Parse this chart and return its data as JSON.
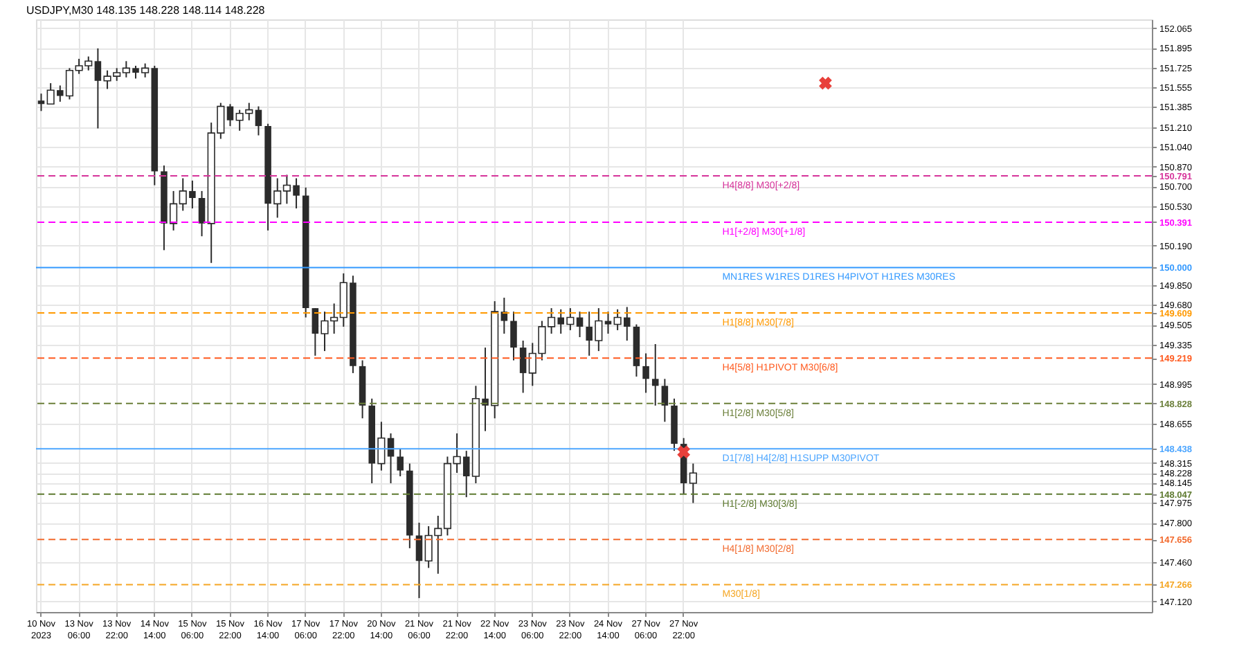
{
  "chart_data": {
    "type": "candlestick",
    "title": "USDJPY,M30  148.135 148.228 148.114 148.228",
    "categories": [
      "10 Nov 2023",
      null,
      null,
      null,
      "13 Nov 06:00",
      null,
      null,
      null,
      "13 Nov 22:00",
      null,
      null,
      null,
      "14 Nov 14:00",
      null,
      null,
      null,
      "15 Nov 06:00",
      null,
      null,
      null,
      "15 Nov 22:00",
      null,
      null,
      null,
      "16 Nov 14:00",
      null,
      null,
      null,
      "17 Nov 06:00",
      null,
      null,
      null,
      "17 Nov 22:00",
      null,
      null,
      null,
      "20 Nov 14:00",
      null,
      null,
      null,
      "21 Nov 06:00",
      null,
      null,
      null,
      "21 Nov 22:00",
      null,
      null,
      null,
      "22 Nov 14:00",
      null,
      null,
      null,
      "23 Nov 06:00",
      null,
      null,
      null,
      "23 Nov 22:00",
      null,
      null,
      null,
      "24 Nov 14:00",
      null,
      null,
      null,
      "27 Nov 06:00",
      null,
      null,
      null,
      "27 Nov 22:00",
      null,
      null,
      null,
      null,
      null,
      null,
      null,
      null,
      null,
      null,
      null,
      null,
      null,
      null,
      null,
      null,
      null,
      null,
      null,
      null,
      null,
      null,
      null,
      null,
      null,
      null,
      null,
      null,
      null,
      null,
      null,
      null,
      null,
      null,
      null,
      null,
      null,
      null,
      null,
      null,
      null,
      null,
      null,
      null,
      null,
      null,
      null,
      null,
      null
    ],
    "color": "#2b2b2b",
    "ohlc": [
      [
        151.44,
        151.5,
        151.35,
        151.41
      ],
      [
        151.41,
        151.59,
        151.41,
        151.53
      ],
      [
        151.53,
        151.57,
        151.43,
        151.48
      ],
      [
        151.48,
        151.72,
        151.45,
        151.7
      ],
      [
        151.7,
        151.8,
        151.67,
        151.74
      ],
      [
        151.74,
        151.82,
        151.7,
        151.78
      ],
      [
        151.78,
        151.89,
        151.2,
        151.61
      ],
      [
        151.61,
        151.7,
        151.54,
        151.65
      ],
      [
        151.65,
        151.72,
        151.61,
        151.68
      ],
      [
        151.68,
        151.78,
        151.64,
        151.72
      ],
      [
        151.72,
        151.74,
        151.63,
        151.68
      ],
      [
        151.68,
        151.76,
        151.64,
        151.72
      ],
      [
        151.72,
        151.74,
        150.71,
        150.83
      ],
      [
        150.83,
        150.88,
        150.15,
        150.38
      ],
      [
        150.38,
        150.66,
        150.32,
        150.55
      ],
      [
        150.55,
        150.77,
        150.49,
        150.66
      ],
      [
        150.66,
        150.75,
        150.51,
        150.6
      ],
      [
        150.6,
        150.66,
        150.27,
        150.38
      ],
      [
        150.38,
        151.25,
        150.04,
        151.16
      ],
      [
        151.16,
        151.42,
        151.11,
        151.39
      ],
      [
        151.39,
        151.41,
        151.22,
        151.27
      ],
      [
        151.27,
        151.36,
        151.18,
        151.33
      ],
      [
        151.33,
        151.42,
        151.27,
        151.36
      ],
      [
        151.36,
        151.39,
        151.14,
        151.22
      ],
      [
        151.22,
        151.24,
        150.32,
        150.55
      ],
      [
        150.55,
        150.77,
        150.43,
        150.66
      ],
      [
        150.66,
        150.8,
        150.55,
        150.71
      ],
      [
        150.71,
        150.77,
        150.51,
        150.62
      ],
      [
        150.62,
        150.69,
        149.57,
        149.65
      ],
      [
        149.65,
        149.65,
        149.24,
        149.43
      ],
      [
        149.43,
        149.62,
        149.28,
        149.54
      ],
      [
        149.54,
        149.69,
        149.43,
        149.57
      ],
      [
        149.57,
        149.95,
        149.49,
        149.87
      ],
      [
        149.87,
        149.93,
        149.09,
        149.15
      ],
      [
        149.15,
        149.2,
        148.7,
        148.81
      ],
      [
        148.81,
        148.87,
        148.14,
        148.31
      ],
      [
        148.31,
        148.67,
        148.25,
        148.53
      ],
      [
        148.53,
        148.57,
        148.14,
        148.37
      ],
      [
        148.37,
        148.44,
        148.2,
        148.25
      ],
      [
        148.25,
        148.31,
        147.58,
        147.69
      ],
      [
        147.69,
        147.8,
        147.15,
        147.47
      ],
      [
        147.47,
        147.77,
        147.41,
        147.69
      ],
      [
        147.69,
        147.86,
        147.36,
        147.75
      ],
      [
        147.75,
        148.37,
        147.69,
        148.31
      ],
      [
        148.31,
        148.57,
        148.23,
        148.37
      ],
      [
        148.37,
        148.42,
        148.02,
        148.2
      ],
      [
        148.2,
        148.98,
        148.14,
        148.87
      ],
      [
        148.87,
        149.31,
        148.59,
        148.81
      ],
      [
        148.81,
        149.71,
        148.7,
        149.62
      ],
      [
        149.62,
        149.74,
        149.43,
        149.54
      ],
      [
        149.54,
        149.62,
        149.2,
        149.31
      ],
      [
        149.31,
        149.37,
        148.92,
        149.09
      ],
      [
        149.09,
        149.35,
        148.98,
        149.26
      ],
      [
        149.26,
        149.54,
        149.2,
        149.49
      ],
      [
        149.49,
        149.65,
        149.43,
        149.57
      ],
      [
        149.57,
        149.64,
        149.43,
        149.51
      ],
      [
        149.51,
        149.65,
        149.46,
        149.57
      ],
      [
        149.57,
        149.62,
        149.4,
        149.49
      ],
      [
        149.49,
        149.62,
        149.24,
        149.37
      ],
      [
        149.37,
        149.65,
        149.28,
        149.54
      ],
      [
        149.54,
        149.62,
        149.43,
        149.51
      ],
      [
        149.51,
        149.64,
        149.46,
        149.57
      ],
      [
        149.57,
        149.66,
        149.37,
        149.49
      ],
      [
        149.49,
        149.51,
        149.06,
        149.15
      ],
      [
        149.15,
        149.26,
        148.92,
        149.04
      ],
      [
        149.04,
        149.34,
        148.81,
        148.98
      ],
      [
        148.98,
        149.04,
        148.67,
        148.81
      ],
      [
        148.81,
        148.87,
        148.42,
        148.48
      ],
      [
        148.48,
        148.53,
        148.05,
        148.14
      ],
      [
        148.14,
        148.31,
        147.97,
        148.228
      ],
      null,
      null,
      null,
      null,
      null,
      null,
      null,
      null,
      null,
      null,
      null,
      null,
      null,
      null,
      null,
      null,
      null,
      null,
      null,
      null,
      null,
      null,
      null,
      null,
      null,
      null,
      null,
      null,
      null,
      null,
      null,
      null,
      null,
      null,
      null,
      null,
      null,
      null,
      null,
      null,
      null,
      null,
      null,
      null,
      null,
      null,
      null,
      null
    ],
    "series": [
      {
        "type": "scatter",
        "marker": "cross",
        "color": "#e8403a",
        "values": [
          null,
          null,
          null,
          null,
          null,
          null,
          null,
          null,
          null,
          null,
          null,
          null,
          null,
          null,
          null,
          null,
          null,
          null,
          null,
          null,
          null,
          null,
          null,
          null,
          null,
          null,
          null,
          null,
          null,
          null,
          null,
          null,
          null,
          null,
          null,
          null,
          null,
          null,
          null,
          null,
          null,
          null,
          null,
          null,
          null,
          null,
          null,
          null,
          null,
          null,
          null,
          null,
          null,
          null,
          null,
          null,
          null,
          null,
          null,
          null,
          null,
          null,
          null,
          null,
          null,
          null,
          null,
          null,
          148.41,
          null,
          null,
          null,
          null,
          null,
          null,
          null,
          null,
          null,
          null,
          null,
          null,
          null,
          null,
          151.59,
          null,
          null,
          null,
          null,
          null,
          null,
          null,
          null,
          null,
          null,
          null,
          null,
          null,
          null,
          null,
          null,
          null,
          null,
          null,
          null,
          null,
          null,
          null,
          null,
          null,
          null,
          null,
          null,
          null,
          null,
          null,
          null,
          null,
          null
        ]
      }
    ],
    "ylim": [
      147.03,
      152.14
    ],
    "yticks": [
      152.065,
      151.895,
      151.725,
      151.555,
      151.385,
      {
        "value": 151.21,
        "label": "151.210"
      },
      {
        "value": 151.04,
        "label": "151.040"
      },
      {
        "value": 150.87,
        "label": "150.870"
      },
      150.791,
      {
        "value": 150.7,
        "label": "150.700"
      },
      {
        "value": 150.53,
        "label": "150.530"
      },
      150.391,
      {
        "value": 150.19,
        "label": "150.190"
      },
      {
        "value": 150.0,
        "label": "150.000"
      },
      {
        "value": 149.85,
        "label": "149.850"
      },
      {
        "value": 149.68,
        "label": "149.680"
      },
      149.609,
      149.505,
      149.335,
      149.219,
      148.995,
      148.828,
      148.655,
      148.438,
      148.315,
      148.228,
      148.145,
      148.047,
      147.975,
      {
        "value": 147.8,
        "label": "147.800"
      },
      147.656,
      {
        "value": 147.46,
        "label": "147.460"
      },
      147.266,
      {
        "value": 147.12,
        "label": "147.120"
      }
    ],
    "ref_lines": [
      {
        "axis": "y",
        "value": 150.791,
        "label": "H4[8/8] M30[+2/8]",
        "color": "#d6339a",
        "line_style": "dashed"
      },
      {
        "axis": "y",
        "value": 150.391,
        "label": "H1[+2/8] M30[+1/8]",
        "color": "#ff00ff",
        "line_style": "dashed"
      },
      {
        "axis": "y",
        "value": 150.0,
        "label": "MN1RES W1RES D1RES H4PIVOT H1RES M30RES",
        "color": "#3399ff",
        "line_style": "solid"
      },
      {
        "axis": "y",
        "value": 149.609,
        "label": "H1[8/8] M30[7/8]",
        "color": "#ff9900",
        "line_style": "dashed"
      },
      {
        "axis": "y",
        "value": 149.219,
        "label": "H4[5/8] H1PIVOT M30[6/8]",
        "color": "#ff5a1f",
        "line_style": "dashed"
      },
      {
        "axis": "y",
        "value": 148.828,
        "label": "H1[2/8] M30[5/8]",
        "color": "#6b7f3a",
        "line_style": "dashed"
      },
      {
        "axis": "y",
        "value": 148.438,
        "label": "D1[7/8] H4[2/8] H1SUPP M30PIVOT",
        "color": "#4da6ff",
        "line_style": "solid"
      },
      {
        "axis": "y",
        "value": 148.047,
        "label": "H1[-2/8] M30[3/8]",
        "color": "#5e7a30",
        "line_style": "dashed"
      },
      {
        "axis": "y",
        "value": 147.656,
        "label": "H4[1/8] M30[2/8]",
        "color": "#f26a2e",
        "line_style": "dashed"
      },
      {
        "axis": "y",
        "value": 147.266,
        "label": "M30[1/8]",
        "color": "#f5a623",
        "line_style": "dashed"
      }
    ],
    "grid": true,
    "legend": false
  }
}
